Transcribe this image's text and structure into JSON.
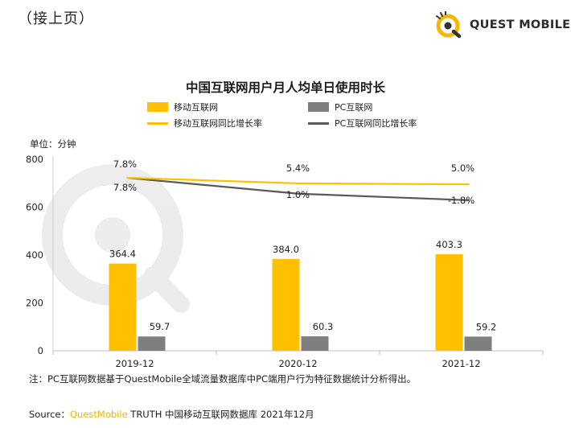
{
  "header": {
    "continued": "（接上页）",
    "brand": "QUEST MOBILE"
  },
  "chart_data": {
    "type": "bar",
    "title": "中国互联网用户月人均单日使用时长",
    "unit_label": "单位：分钟",
    "categories": [
      "2019-12",
      "2020-12",
      "2021-12"
    ],
    "ylim": [
      0,
      800
    ],
    "yticks": [
      0,
      200,
      400,
      600,
      800
    ],
    "series": [
      {
        "name": "移动互联网",
        "kind": "bar",
        "color": "#ffc000",
        "values": [
          364.4,
          384.0,
          403.3
        ],
        "labels": [
          "364.4",
          "384.0",
          "403.3"
        ]
      },
      {
        "name": "PC互联网",
        "kind": "bar",
        "color": "#7f7f7f",
        "values": [
          59.7,
          60.3,
          59.2
        ],
        "labels": [
          "59.7",
          "60.3",
          "59.2"
        ]
      },
      {
        "name": "移动互联网同比增长率",
        "kind": "line",
        "axis": "secondary",
        "color": "#ffc000",
        "values": [
          7.8,
          5.4,
          5.0
        ],
        "labels": [
          "7.8%",
          "5.4%",
          "5.0%"
        ]
      },
      {
        "name": "PC互联网同比增长率",
        "kind": "line",
        "axis": "secondary",
        "color": "#595959",
        "values": [
          7.8,
          1.0,
          -1.8
        ],
        "labels": [
          "7.8%",
          "1.0%",
          "-1.8%"
        ]
      }
    ],
    "legend_position": "top",
    "grid": false
  },
  "note": "注：PC互联网数据基于QuestMobile全域流量数据库中PC端用户行为特征数据统计分析得出。",
  "source": {
    "prefix": "Source：",
    "brand": "QuestMobile",
    "rest": " TRUTH 中国移动互联网数据库 2021年12月"
  }
}
